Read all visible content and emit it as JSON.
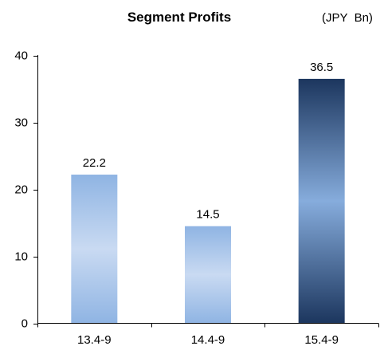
{
  "chart_data": {
    "type": "bar",
    "title": "Segment Profits",
    "unit": "(JPY  Bn)",
    "xlabel": "",
    "ylabel": "",
    "categories": [
      "13.4-9",
      "14.4-9",
      "15.4-9"
    ],
    "values": [
      22.2,
      14.5,
      36.5
    ],
    "data_labels": [
      "22.2",
      "14.5",
      "36.5"
    ],
    "ylim": [
      0,
      40
    ],
    "yticks": [
      0,
      10,
      20,
      30,
      40
    ],
    "grid": false,
    "legend": "none",
    "colors": {
      "bar_light_edge": "#8fb4e3",
      "bar_light_center": "#c9daf2",
      "bar_dark_edge": "#1c365e",
      "bar_dark_center": "#86acdc"
    }
  }
}
